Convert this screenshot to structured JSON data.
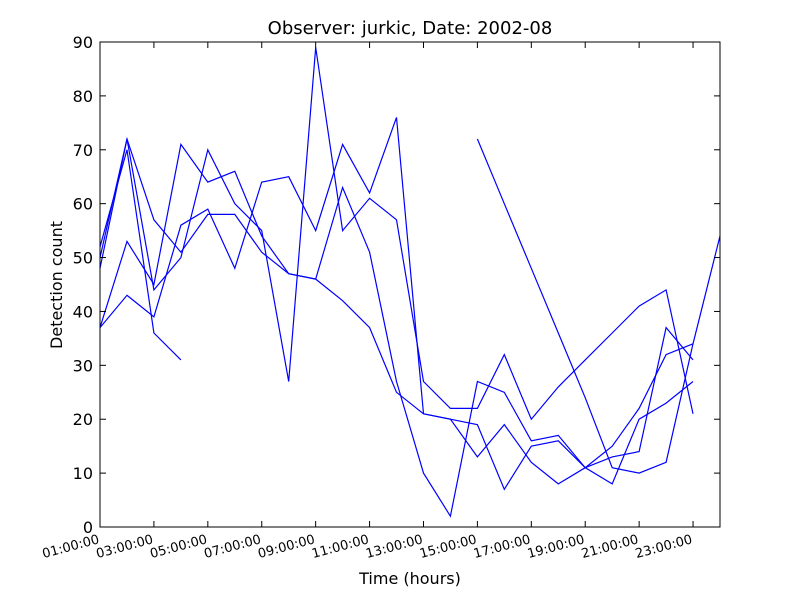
{
  "chart_data": {
    "type": "line",
    "title": "Observer: jurkic, Date: 2002-08",
    "xlabel": "Time (hours)",
    "ylabel": "Detection count",
    "xlim": [
      1,
      24
    ],
    "ylim": [
      0,
      90
    ],
    "x_ticks": [
      {
        "value": 1,
        "label": "01:00:00"
      },
      {
        "value": 3,
        "label": "03:00:00"
      },
      {
        "value": 5,
        "label": "05:00:00"
      },
      {
        "value": 7,
        "label": "07:00:00"
      },
      {
        "value": 9,
        "label": "09:00:00"
      },
      {
        "value": 11,
        "label": "11:00:00"
      },
      {
        "value": 13,
        "label": "13:00:00"
      },
      {
        "value": 15,
        "label": "15:00:00"
      },
      {
        "value": 17,
        "label": "17:00:00"
      },
      {
        "value": 19,
        "label": "19:00:00"
      },
      {
        "value": 21,
        "label": "21:00:00"
      },
      {
        "value": 23,
        "label": "23:00:00"
      }
    ],
    "y_ticks": [
      0,
      10,
      20,
      30,
      40,
      50,
      60,
      70,
      80,
      90
    ],
    "grid": false,
    "line_color": "#0000ff",
    "series": [
      {
        "x": [
          1,
          2,
          3,
          4
        ],
        "y": [
          52,
          70,
          36,
          31
        ]
      },
      {
        "x": [
          1,
          2,
          3,
          4,
          5,
          6,
          7,
          8,
          9,
          10,
          11,
          12,
          13,
          14,
          15,
          16,
          17,
          18,
          19,
          20,
          21,
          22,
          23,
          24
        ],
        "y": [
          48,
          72,
          44,
          50,
          70,
          60,
          55,
          27,
          89,
          55,
          61,
          57,
          27,
          22,
          22,
          32,
          20,
          26,
          31,
          36,
          41,
          44,
          21,
          null
        ]
      },
      {
        "x": [
          1,
          2,
          3,
          4,
          5,
          6,
          7,
          8,
          9,
          10,
          11,
          12,
          13,
          14,
          15,
          16,
          17,
          18,
          19,
          20,
          21,
          22,
          23,
          24
        ],
        "y": [
          37,
          43,
          39,
          56,
          59,
          48,
          64,
          65,
          55,
          71,
          62,
          76,
          21,
          20,
          13,
          19,
          12,
          8,
          11,
          15,
          22,
          32,
          34,
          null
        ]
      },
      {
        "x": [
          1,
          2,
          3,
          4,
          5,
          6,
          7,
          8,
          9,
          10,
          11,
          12,
          13,
          14,
          15,
          16,
          17,
          18,
          19,
          20,
          21,
          22,
          23,
          24
        ],
        "y": [
          37,
          53,
          45,
          71,
          64,
          66,
          54,
          47,
          46,
          63,
          51,
          27,
          10,
          2,
          27,
          25,
          16,
          17,
          11,
          8,
          20,
          23,
          27,
          null
        ]
      },
      {
        "x": [
          1,
          2,
          3,
          4,
          5,
          6,
          7,
          8,
          9,
          10,
          11,
          12,
          13,
          14,
          15,
          16,
          17,
          18,
          19,
          20,
          21,
          22,
          23,
          24
        ],
        "y": [
          50,
          72,
          57,
          51,
          58,
          58,
          51,
          47,
          46,
          42,
          37,
          25,
          21,
          20,
          19,
          7,
          15,
          16,
          11,
          13,
          14,
          37,
          31,
          null
        ]
      },
      {
        "x": [
          15,
          16,
          17,
          18,
          19,
          20,
          21,
          22,
          23,
          24
        ],
        "y": [
          72,
          60,
          48,
          36,
          24,
          11,
          10,
          12,
          34,
          54
        ]
      }
    ]
  }
}
